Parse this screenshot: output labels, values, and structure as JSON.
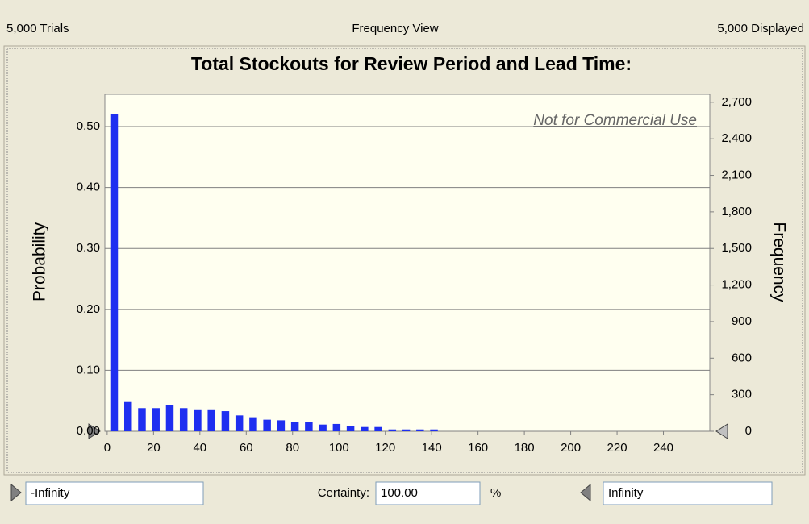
{
  "header": {
    "left": "5,000 Trials",
    "center": "Frequency View",
    "right": "5,000 Displayed"
  },
  "chart_data": {
    "type": "histogram",
    "title": "Total Stockouts for Review Period and Lead Time:",
    "watermark": "Not for Commercial Use",
    "ylabel": "Probability",
    "y2label": "Frequency",
    "bins": [
      0,
      6,
      12,
      18,
      24,
      30,
      36,
      42,
      48,
      54,
      60,
      66,
      72,
      78,
      84,
      90,
      96,
      102,
      108,
      114,
      120,
      126,
      132,
      138,
      144
    ],
    "values": [
      0.52,
      0.048,
      0.038,
      0.038,
      0.043,
      0.038,
      0.036,
      0.036,
      0.033,
      0.026,
      0.023,
      0.019,
      0.018,
      0.015,
      0.015,
      0.011,
      0.012,
      0.008,
      0.007,
      0.007,
      0.003,
      0.003,
      0.003,
      0.003
    ],
    "color": "#1f2ff0",
    "xlim": [
      -1,
      260
    ],
    "xticks": [
      0,
      20,
      40,
      60,
      80,
      100,
      120,
      140,
      160,
      180,
      200,
      220,
      240
    ],
    "ylim": [
      0,
      0.553
    ],
    "yticks": [
      {
        "value": 0,
        "label": "0.00"
      },
      {
        "value": 0.1,
        "label": "0.10"
      },
      {
        "value": 0.2,
        "label": "0.20"
      },
      {
        "value": 0.3,
        "label": "0.30"
      },
      {
        "value": 0.4,
        "label": "0.40"
      },
      {
        "value": 0.5,
        "label": "0.50"
      }
    ],
    "y2lim": [
      0,
      2765
    ],
    "y2ticks": [
      0,
      300,
      600,
      900,
      {
        "value": 1200,
        "label": "1,200"
      },
      {
        "value": 1500,
        "label": "1,500"
      },
      {
        "value": 1800,
        "label": "1,800"
      },
      {
        "value": 2100,
        "label": "2,100"
      },
      {
        "value": 2400,
        "label": "2,400"
      },
      {
        "value": 2700,
        "label": "2,700"
      }
    ],
    "grid": true
  },
  "footer": {
    "lower": "-Infinity",
    "certainty_label": "Certainty:",
    "certainty": "100.00",
    "unit": "%",
    "upper": "Infinity"
  }
}
